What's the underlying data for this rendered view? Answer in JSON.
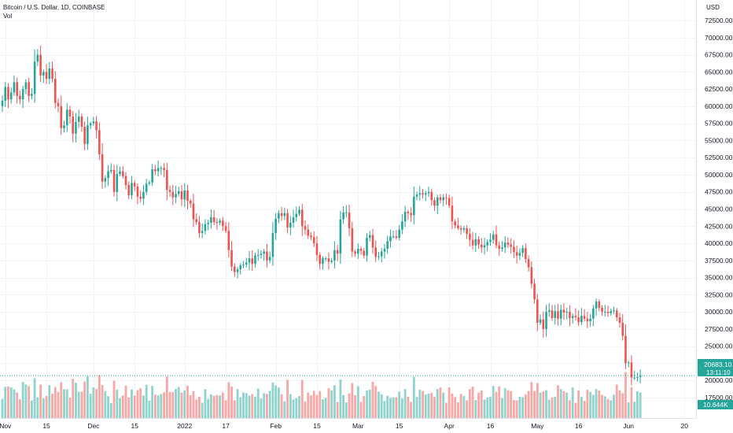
{
  "header": {
    "symbol_line": "Bitcoin / U.S. Dollar, 1D, COINBASE",
    "volume_label": "Vol"
  },
  "price_axis": {
    "currency": "USD",
    "last_price_label": "20683.10",
    "countdown_label": "13:11:10",
    "volume_label": "10.644K"
  },
  "colors": {
    "up": "#26a69a",
    "down": "#ef5350",
    "up_volume": "#8fd3cc",
    "down_volume": "#f7a7a5",
    "grid": "#f0f3fa",
    "axis_text": "#131722",
    "last_price_line": "#26a69a"
  },
  "chart_data": {
    "type": "candlestick",
    "title": "Bitcoin / U.S. Dollar, 1D, COINBASE",
    "y_unit": "USD",
    "ylim": [
      14500,
      75500
    ],
    "y_ticks": [
      17500,
      20000,
      22500,
      25000,
      27500,
      30000,
      32500,
      35000,
      37500,
      40000,
      42500,
      45000,
      47500,
      50000,
      52500,
      55000,
      57500,
      60000,
      62500,
      65000,
      67500,
      70000,
      72500
    ],
    "y_tick_labels": [
      "17500.00",
      "20000.00",
      "22500.00",
      "25000.00",
      "27500.00",
      "30000.00",
      "32500.00",
      "35000.00",
      "37500.00",
      "40000.00",
      "42500.00",
      "45000.00",
      "47500.00",
      "50000.00",
      "52500.00",
      "55000.00",
      "57500.00",
      "60000.00",
      "62500.00",
      "65000.00",
      "67500.00",
      "70000.00",
      "72500.00"
    ],
    "x_ticks": [
      {
        "day": 1,
        "label": "Nov"
      },
      {
        "day": 15,
        "label": "15"
      },
      {
        "day": 31,
        "label": "Dec"
      },
      {
        "day": 45,
        "label": "15"
      },
      {
        "day": 62,
        "label": "2022"
      },
      {
        "day": 76,
        "label": "17"
      },
      {
        "day": 93,
        "label": "Feb"
      },
      {
        "day": 107,
        "label": "15"
      },
      {
        "day": 121,
        "label": "Mar"
      },
      {
        "day": 135,
        "label": "15"
      },
      {
        "day": 152,
        "label": "Apr"
      },
      {
        "day": 166,
        "label": "16"
      },
      {
        "day": 182,
        "label": "May"
      },
      {
        "day": 196,
        "label": "16"
      },
      {
        "day": 213,
        "label": "Jun"
      },
      {
        "day": 232,
        "label": "20"
      }
    ],
    "last_price": 20683.1,
    "first_open": 60000,
    "closes": [
      60800,
      62800,
      61000,
      62000,
      63500,
      61500,
      61000,
      62500,
      63500,
      61500,
      61800,
      66500,
      67500,
      64500,
      65000,
      64000,
      65500,
      64000,
      60500,
      60000,
      56800,
      57200,
      59500,
      58500,
      56000,
      57700,
      58500,
      57000,
      54500,
      57200,
      57500,
      57800,
      56500,
      53000,
      49000,
      49500,
      50500,
      50700,
      47500,
      50100,
      50500,
      49800,
      48500,
      47000,
      48800,
      48300,
      46800,
      46500,
      47500,
      48700,
      48900,
      50800,
      50500,
      51000,
      51000,
      50700,
      47800,
      47500,
      46700,
      47200,
      47600,
      46400,
      47700,
      46200,
      45800,
      43500,
      43100,
      41500,
      41800,
      42800,
      43000,
      43800,
      43100,
      43000,
      43300,
      42500,
      41800,
      39000,
      36600,
      35800,
      36200,
      36800,
      36900,
      37200,
      37800,
      37000,
      38200,
      38300,
      38500,
      38800,
      37500,
      38000,
      41500,
      43600,
      44400,
      44000,
      44400,
      42300,
      43000,
      43800,
      44300,
      44900,
      42500,
      42000,
      41100,
      40900,
      40000,
      38300,
      37000,
      37800,
      37800,
      37300,
      37500,
      39000,
      38500,
      43500,
      44500,
      44500,
      42200,
      38800,
      38500,
      39200,
      38900,
      38200,
      40800,
      41200,
      39400,
      38000,
      38100,
      38800,
      39200,
      40300,
      41000,
      41000,
      40800,
      42000,
      43200,
      44600,
      44400,
      44100,
      46800,
      47100,
      47300,
      47100,
      47300,
      47500,
      46300,
      45500,
      46700,
      46300,
      46700,
      46600,
      45500,
      43200,
      42600,
      42200,
      42000,
      42200,
      41400,
      40500,
      39700,
      40600,
      39800,
      39400,
      39700,
      40200,
      40500,
      41300,
      39700,
      39200,
      39400,
      40100,
      39800,
      39500,
      38700,
      38200,
      38600,
      39300,
      37700,
      36500,
      34100,
      31800,
      28400,
      28900,
      27500,
      30000,
      30200,
      29100,
      30100,
      29000,
      30300,
      29900,
      30000,
      29100,
      29400,
      29200,
      28500,
      29400,
      29000,
      28600,
      29000,
      30500,
      31500,
      30600,
      30000,
      30000,
      29800,
      30100,
      30200,
      29200,
      28400,
      26500,
      22500,
      22600,
      20400,
      20400,
      20500,
      20683.1
    ],
    "volume_max": 25
  }
}
